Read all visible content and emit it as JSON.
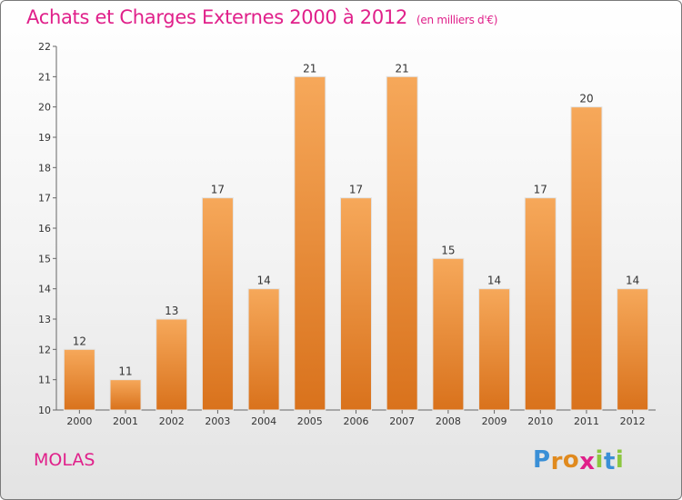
{
  "header": {
    "title": "Achats et Charges Externes 2000 à 2012",
    "subtitle": "(en milliers d'€)"
  },
  "footer": {
    "place": "MOLAS",
    "logo_letters": [
      "P",
      "r",
      "o",
      "x",
      "i",
      "t",
      "i"
    ],
    "logo_colors": [
      "#3a8fd6",
      "#e08a1e",
      "#e08a1e",
      "#e0208a",
      "#8cc63f",
      "#3a8fd6",
      "#8cc63f"
    ]
  },
  "chart_data": {
    "type": "bar",
    "categories": [
      "2000",
      "2001",
      "2002",
      "2003",
      "2004",
      "2005",
      "2006",
      "2007",
      "2008",
      "2009",
      "2010",
      "2011",
      "2012"
    ],
    "values": [
      12,
      11,
      13,
      17,
      14,
      21,
      17,
      21,
      15,
      14,
      17,
      20,
      14
    ],
    "title": "Achats et Charges Externes 2000 à 2012",
    "xlabel": "",
    "ylabel": "",
    "ylim": [
      10,
      22
    ],
    "yticks": [
      10,
      11,
      12,
      13,
      14,
      15,
      16,
      17,
      18,
      19,
      20,
      21,
      22
    ],
    "grid": false,
    "bar_color": "#f08a2a"
  }
}
